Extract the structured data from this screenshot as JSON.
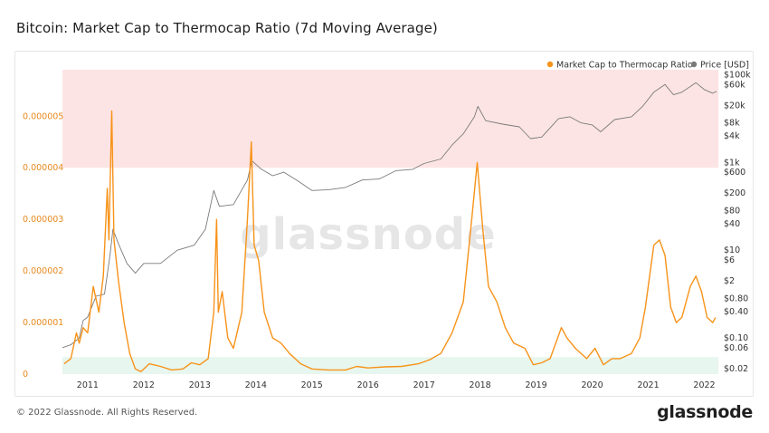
{
  "title": "Bitcoin: Market Cap to Thermocap Ratio (7d Moving Average)",
  "footer": {
    "copyright": "© 2022 Glassnode. All Rights Reserved.",
    "brand": "glassnode"
  },
  "watermark": "glassnode",
  "colors": {
    "ratio": "#f7931a",
    "price": "#7a7a7a",
    "upper_band": "#fde4e4",
    "lower_band": "#e7f6ee"
  },
  "chart_data": {
    "type": "line",
    "legend": {
      "placement": "top-right",
      "entries": [
        "Market Cap to Thermocap Ratio",
        "Price [USD]"
      ]
    },
    "x_ticks": [
      "2011",
      "2012",
      "2013",
      "2014",
      "2015",
      "2016",
      "2017",
      "2018",
      "2019",
      "2020",
      "2021",
      "2022"
    ],
    "x_range": [
      2010.55,
      2022.25
    ],
    "left_axis": {
      "ticks": [
        "0",
        "0.000001",
        "0.000002",
        "0.000003",
        "0.000004",
        "0.000005"
      ],
      "range": [
        0,
        5.9e-06
      ]
    },
    "right_axis": {
      "scale": "log",
      "ticks": [
        {
          "label": "$0.02",
          "value": 0.02
        },
        {
          "label": "$0.06",
          "value": 0.06
        },
        {
          "label": "$0.10",
          "value": 0.1
        },
        {
          "label": "$0.40",
          "value": 0.4
        },
        {
          "label": "$0.80",
          "value": 0.8
        },
        {
          "label": "$2",
          "value": 2
        },
        {
          "label": "$6",
          "value": 6
        },
        {
          "label": "$10",
          "value": 10
        },
        {
          "label": "$40",
          "value": 40
        },
        {
          "label": "$80",
          "value": 80
        },
        {
          "label": "$200",
          "value": 200
        },
        {
          "label": "$600",
          "value": 600
        },
        {
          "label": "$1k",
          "value": 1000
        },
        {
          "label": "$4k",
          "value": 4000
        },
        {
          "label": "$8k",
          "value": 8000
        },
        {
          "label": "$20k",
          "value": 20000
        },
        {
          "label": "$60k",
          "value": 60000
        },
        {
          "label": "$100k",
          "value": 100000
        }
      ],
      "range": [
        0.015,
        130000
      ]
    },
    "bands": [
      {
        "name": "upper",
        "from": 4e-06,
        "to": 5.9e-06
      },
      {
        "name": "lower",
        "from": 0,
        "to": 3.3e-07
      }
    ],
    "series": [
      {
        "name": "Market Cap to Thermocap Ratio",
        "axis": "left",
        "points": [
          [
            2010.58,
            2e-07
          ],
          [
            2010.7,
            3e-07
          ],
          [
            2010.8,
            8e-07
          ],
          [
            2010.85,
            6e-07
          ],
          [
            2010.92,
            9e-07
          ],
          [
            2011.0,
            8e-07
          ],
          [
            2011.1,
            1.7e-06
          ],
          [
            2011.2,
            1.2e-06
          ],
          [
            2011.28,
            1.9e-06
          ],
          [
            2011.35,
            3.6e-06
          ],
          [
            2011.38,
            2.6e-06
          ],
          [
            2011.43,
            5.1e-06
          ],
          [
            2011.47,
            2.6e-06
          ],
          [
            2011.55,
            1.8e-06
          ],
          [
            2011.65,
            1e-06
          ],
          [
            2011.75,
            4e-07
          ],
          [
            2011.85,
            1e-07
          ],
          [
            2011.95,
            5e-08
          ],
          [
            2012.1,
            2e-07
          ],
          [
            2012.3,
            1.5e-07
          ],
          [
            2012.5,
            8e-08
          ],
          [
            2012.7,
            1e-07
          ],
          [
            2012.85,
            2.2e-07
          ],
          [
            2013.0,
            1.8e-07
          ],
          [
            2013.15,
            3e-07
          ],
          [
            2013.25,
            1.2e-06
          ],
          [
            2013.3,
            3e-06
          ],
          [
            2013.33,
            1.2e-06
          ],
          [
            2013.4,
            1.6e-06
          ],
          [
            2013.5,
            7e-07
          ],
          [
            2013.6,
            5e-07
          ],
          [
            2013.75,
            1.2e-06
          ],
          [
            2013.85,
            3e-06
          ],
          [
            2013.92,
            4.5e-06
          ],
          [
            2013.97,
            2.5e-06
          ],
          [
            2014.05,
            2.2e-06
          ],
          [
            2014.15,
            1.2e-06
          ],
          [
            2014.3,
            7e-07
          ],
          [
            2014.45,
            6e-07
          ],
          [
            2014.6,
            4e-07
          ],
          [
            2014.8,
            2e-07
          ],
          [
            2015.0,
            1e-07
          ],
          [
            2015.3,
            8e-08
          ],
          [
            2015.6,
            8e-08
          ],
          [
            2015.8,
            1.5e-07
          ],
          [
            2016.0,
            1.2e-07
          ],
          [
            2016.3,
            1.4e-07
          ],
          [
            2016.6,
            1.5e-07
          ],
          [
            2016.9,
            2e-07
          ],
          [
            2017.1,
            2.8e-07
          ],
          [
            2017.3,
            4e-07
          ],
          [
            2017.5,
            8e-07
          ],
          [
            2017.7,
            1.4e-06
          ],
          [
            2017.85,
            3e-06
          ],
          [
            2017.95,
            4.1e-06
          ],
          [
            2018.05,
            2.8e-06
          ],
          [
            2018.15,
            1.7e-06
          ],
          [
            2018.3,
            1.4e-06
          ],
          [
            2018.45,
            9e-07
          ],
          [
            2018.6,
            6e-07
          ],
          [
            2018.8,
            5e-07
          ],
          [
            2018.95,
            1.8e-07
          ],
          [
            2019.1,
            2.2e-07
          ],
          [
            2019.25,
            3e-07
          ],
          [
            2019.45,
            9e-07
          ],
          [
            2019.55,
            7e-07
          ],
          [
            2019.7,
            5e-07
          ],
          [
            2019.9,
            3e-07
          ],
          [
            2020.05,
            5e-07
          ],
          [
            2020.2,
            1.8e-07
          ],
          [
            2020.35,
            3e-07
          ],
          [
            2020.5,
            3e-07
          ],
          [
            2020.7,
            4e-07
          ],
          [
            2020.85,
            7e-07
          ],
          [
            2020.95,
            1.3e-06
          ],
          [
            2021.1,
            2.5e-06
          ],
          [
            2021.2,
            2.6e-06
          ],
          [
            2021.3,
            2.3e-06
          ],
          [
            2021.4,
            1.3e-06
          ],
          [
            2021.5,
            1e-06
          ],
          [
            2021.6,
            1.1e-06
          ],
          [
            2021.75,
            1.7e-06
          ],
          [
            2021.85,
            1.9e-06
          ],
          [
            2021.95,
            1.6e-06
          ],
          [
            2022.05,
            1.1e-06
          ],
          [
            2022.15,
            1e-06
          ],
          [
            2022.2,
            1.1e-06
          ]
        ]
      },
      {
        "name": "Price [USD]",
        "axis": "right",
        "points": [
          [
            2010.55,
            0.06
          ],
          [
            2010.7,
            0.07
          ],
          [
            2010.85,
            0.1
          ],
          [
            2010.92,
            0.25
          ],
          [
            2011.0,
            0.3
          ],
          [
            2011.15,
            0.9
          ],
          [
            2011.3,
            1.0
          ],
          [
            2011.4,
            8
          ],
          [
            2011.45,
            30
          ],
          [
            2011.55,
            14
          ],
          [
            2011.7,
            5
          ],
          [
            2011.85,
            3
          ],
          [
            2012.0,
            5
          ],
          [
            2012.3,
            5
          ],
          [
            2012.6,
            10
          ],
          [
            2012.9,
            13
          ],
          [
            2013.1,
            30
          ],
          [
            2013.25,
            230
          ],
          [
            2013.35,
            100
          ],
          [
            2013.6,
            110
          ],
          [
            2013.85,
            400
          ],
          [
            2013.93,
            1100
          ],
          [
            2014.1,
            700
          ],
          [
            2014.3,
            500
          ],
          [
            2014.5,
            600
          ],
          [
            2014.75,
            380
          ],
          [
            2015.0,
            230
          ],
          [
            2015.3,
            240
          ],
          [
            2015.6,
            270
          ],
          [
            2015.9,
            400
          ],
          [
            2016.2,
            420
          ],
          [
            2016.5,
            650
          ],
          [
            2016.8,
            700
          ],
          [
            2017.0,
            950
          ],
          [
            2017.3,
            1200
          ],
          [
            2017.5,
            2500
          ],
          [
            2017.7,
            4500
          ],
          [
            2017.9,
            11000
          ],
          [
            2017.96,
            19000
          ],
          [
            2018.1,
            9000
          ],
          [
            2018.4,
            7500
          ],
          [
            2018.7,
            6500
          ],
          [
            2018.9,
            3500
          ],
          [
            2019.1,
            3800
          ],
          [
            2019.4,
            10000
          ],
          [
            2019.6,
            11000
          ],
          [
            2019.8,
            8000
          ],
          [
            2020.0,
            7200
          ],
          [
            2020.15,
            5000
          ],
          [
            2020.4,
            9500
          ],
          [
            2020.7,
            11000
          ],
          [
            2020.9,
            19000
          ],
          [
            2021.1,
            40000
          ],
          [
            2021.3,
            60000
          ],
          [
            2021.45,
            35000
          ],
          [
            2021.6,
            40000
          ],
          [
            2021.85,
            66000
          ],
          [
            2022.0,
            46000
          ],
          [
            2022.15,
            38000
          ],
          [
            2022.22,
            42000
          ]
        ]
      }
    ]
  }
}
